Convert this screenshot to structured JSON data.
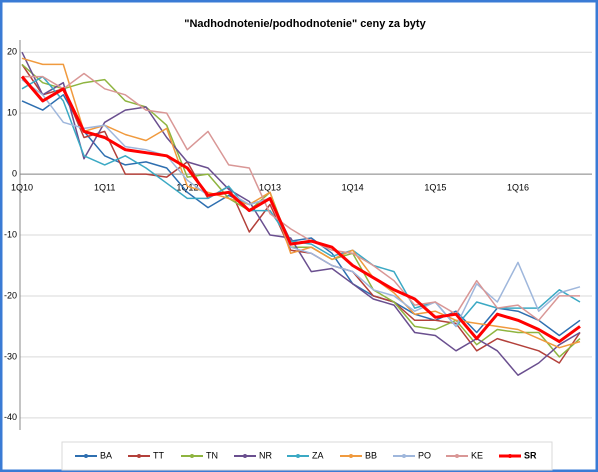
{
  "chart_data": {
    "type": "line",
    "title": "\"Nadhodnotenie/podhodnotenie\" ceny za byty",
    "categories": [
      "1Q10",
      null,
      null,
      null,
      "1Q11",
      null,
      null,
      null,
      "1Q12",
      null,
      null,
      null,
      "1Q13",
      null,
      null,
      null,
      "1Q14",
      null,
      null,
      null,
      "1Q15",
      null,
      null,
      null,
      "1Q16",
      null,
      null,
      null
    ],
    "ylim": [
      -42,
      22
    ],
    "yticks": [
      -40,
      -30,
      -20,
      -10,
      0,
      10,
      20
    ],
    "grid": true,
    "legend": "bottom",
    "series": [
      {
        "name": "BA",
        "color": "#2e6fb0",
        "values": [
          12,
          10.5,
          13,
          7,
          3,
          1.5,
          2,
          1,
          -3,
          -5.5,
          -3.5,
          -5,
          -4,
          -11,
          -10.5,
          -13,
          -18,
          -20,
          -21,
          -23,
          -24,
          -22.5,
          -26,
          -22,
          -22.5,
          -24,
          -26.5,
          -24
        ]
      },
      {
        "name": "TT",
        "color": "#b3403a",
        "values": [
          18,
          13,
          14,
          6,
          7,
          0,
          0,
          -0.5,
          2,
          -4,
          -2,
          -9.5,
          -5,
          -12.5,
          -13,
          -15,
          -16,
          -20,
          -21,
          -24,
          -24,
          -24.5,
          -29,
          -27,
          -28,
          -29,
          -31,
          -26
        ]
      },
      {
        "name": "TN",
        "color": "#8eb43f",
        "values": [
          18,
          15,
          14,
          15,
          15.5,
          12,
          11,
          8,
          -0.5,
          0,
          -4,
          -6,
          -3,
          -12,
          -12,
          -14,
          -13,
          -19,
          -21,
          -25,
          -25.5,
          -24,
          -28,
          -25.5,
          -26,
          -26,
          -30,
          -27
        ]
      },
      {
        "name": "NR",
        "color": "#6a4f8f",
        "values": [
          20,
          13,
          15,
          2.5,
          8.5,
          10.5,
          11,
          6,
          2,
          1,
          -2.5,
          -4.5,
          -10,
          -10.5,
          -16,
          -15.5,
          -18,
          -20.5,
          -21.5,
          -26,
          -26.5,
          -29,
          -27,
          -29,
          -33,
          -31,
          -28,
          -26
        ]
      },
      {
        "name": "ZA",
        "color": "#3ba9c4",
        "values": [
          14,
          16,
          12,
          3,
          1.5,
          3,
          1,
          -1.5,
          -4,
          -4,
          -2,
          -6,
          -6,
          -11,
          -11.5,
          -13.5,
          -12.5,
          -15,
          -16,
          -22,
          -21,
          -25,
          -21,
          -22,
          -22,
          -22,
          -19,
          -21
        ]
      },
      {
        "name": "BB",
        "color": "#f09a3e",
        "values": [
          19,
          18,
          18,
          7,
          8,
          6.5,
          5.5,
          7.5,
          -2,
          -3,
          -4,
          -5,
          -3,
          -13,
          -12,
          -14,
          -12.5,
          -17,
          -19.5,
          -23,
          -22.5,
          -24,
          -24.5,
          -25,
          -25.5,
          -27,
          -28.5,
          -27.5
        ]
      },
      {
        "name": "PO",
        "color": "#9fb7dc",
        "values": [
          15.5,
          13,
          8.5,
          7.5,
          8,
          4.5,
          4,
          3,
          -1,
          -3.5,
          -3,
          -5,
          -4,
          -12,
          -13,
          -15,
          -16,
          -19,
          -20,
          -22.5,
          -21,
          -25,
          -18,
          -21,
          -14.5,
          -22.5,
          -19.5,
          -18.5
        ]
      },
      {
        "name": "KE",
        "color": "#d99796",
        "values": [
          16,
          16,
          14,
          16.5,
          14,
          13,
          10.5,
          10,
          4,
          7,
          1.5,
          1,
          -6.5,
          -9,
          -11,
          -12.5,
          -13,
          -15,
          -17.5,
          -21.5,
          -21,
          -23,
          -17.5,
          -22,
          -21.5,
          -24,
          -20,
          -20
        ]
      },
      {
        "name": "SR",
        "color": "#ff0000",
        "values": [
          16,
          12,
          14,
          7,
          6,
          4,
          3.5,
          3,
          1,
          -3.5,
          -3,
          -6,
          -4,
          -11.5,
          -11,
          -12,
          -15,
          -17,
          -19,
          -20.5,
          -23.5,
          -23,
          -27,
          -23,
          -24,
          -25.5,
          -27.5,
          -25
        ]
      }
    ]
  }
}
